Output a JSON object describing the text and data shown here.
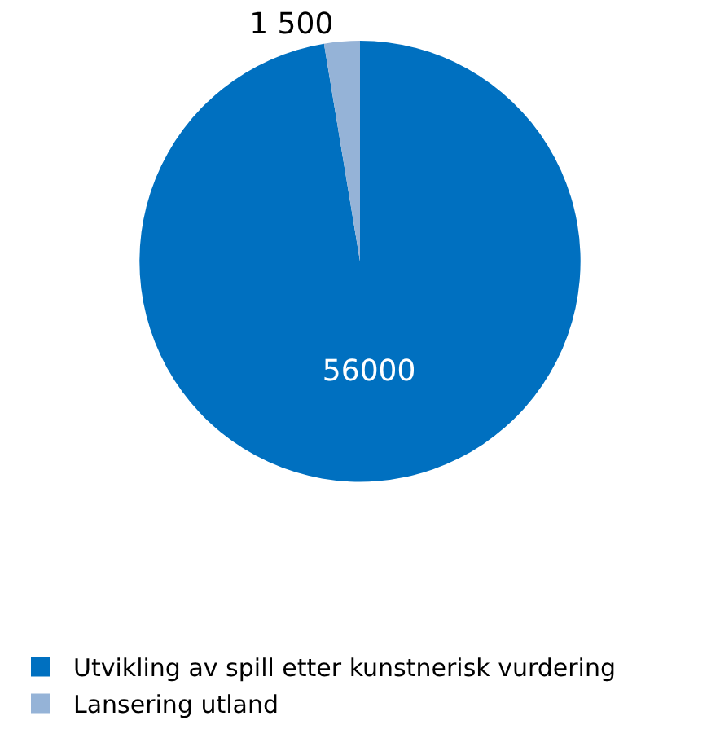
{
  "chart_data": {
    "type": "pie",
    "categories": [
      "Utvikling av spill etter kunstnerisk vurdering",
      "Lansering utland"
    ],
    "values": [
      56000,
      1500
    ],
    "value_labels": [
      "56000",
      "1 500"
    ],
    "colors": [
      "#0070c0",
      "#95b3d7"
    ],
    "legend": "bottom"
  }
}
